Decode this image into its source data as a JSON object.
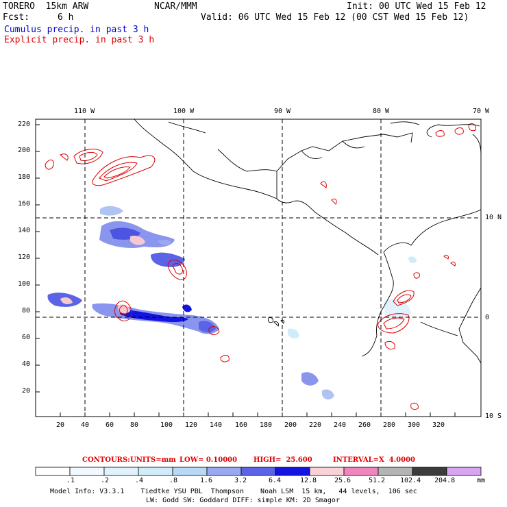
{
  "header": {
    "model": "TORERO  15km ARW",
    "org": "NCAR/MMM",
    "init": "Init: 00 UTC Wed 15 Feb 12",
    "fcst_label": "Fcst:",
    "fcst_value": "6 h",
    "valid": "Valid: 06 UTC Wed 15 Feb 12 (00 CST Wed 15 Feb 12)",
    "field1": "Cumulus precip. in past 3 h",
    "field2": "Explicit precip. in past 3 h"
  },
  "colors": {
    "field1": "#0000cc",
    "field2": "#dd0000",
    "contour": "#dd0000"
  },
  "map": {
    "lon_labels": [
      "110 W",
      "100 W",
      "90 W",
      "80 W",
      "70 W"
    ],
    "lat_labels": [
      "10 N",
      "0",
      "10 S"
    ],
    "y_ticks": [
      "220",
      "200",
      "180",
      "160",
      "140",
      "120",
      "100",
      "80",
      "60",
      "40",
      "20"
    ],
    "x_ticks": [
      "20",
      "40",
      "60",
      "80",
      "100",
      "120",
      "140",
      "160",
      "180",
      "200",
      "220",
      "240",
      "260",
      "280",
      "300",
      "320"
    ]
  },
  "contour_info": {
    "contours": "CONTOURS:",
    "units": "UNITS=mm",
    "low": "LOW= 0.10000",
    "high": "HIGH=  25.600",
    "interval": "INTERVAL=X  4.0000"
  },
  "colorbar": {
    "labels": [
      ".1",
      ".2",
      ".4",
      ".8",
      "1.6",
      "3.2",
      "6.4",
      "12.8",
      "25.6",
      "51.2",
      "102.4",
      "204.8"
    ],
    "unit": "mm",
    "colors": [
      "#ffffff",
      "#f2f8ff",
      "#e2f2fd",
      "#d0ecf8",
      "#b8d8f6",
      "#9aa8f0",
      "#5b63e6",
      "#1414e0",
      "#f8d2d6",
      "#f086be",
      "#b4b4b4",
      "#3c3c3c",
      "#d6a6f2"
    ]
  },
  "footer": {
    "line1": "Model Info: V3.3.1    Tiedtke YSU PBL  Thompson    Noah LSM  15 km,   44 levels,  106 sec",
    "line2": "LW: Godd SW: Goddard DIFF: simple KM: 2D Smagor"
  }
}
